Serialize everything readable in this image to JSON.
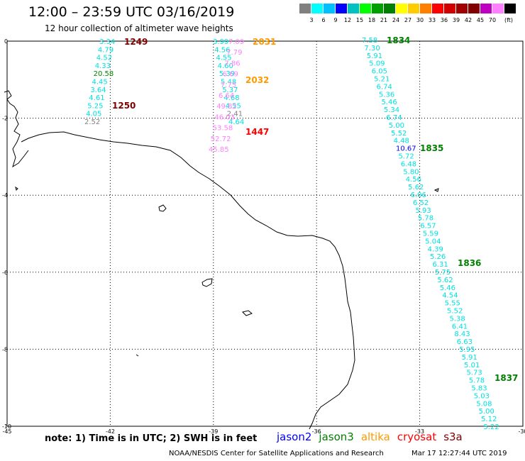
{
  "title": "12:00 – 23:59 UTC 03/16/2019",
  "subtitle": "12 hour collection of altimeter wave heights",
  "legend": {
    "colors": [
      "#808080",
      "#00ffff",
      "#00bfff",
      "#0000ff",
      "#00c0c0",
      "#00ff00",
      "#00a000",
      "#008000",
      "#ffff00",
      "#ffcc00",
      "#ff8000",
      "#ff0000",
      "#d00000",
      "#a00000",
      "#800000",
      "#c000c0",
      "#ff80ff",
      "#000000"
    ],
    "levels": [
      "3",
      "6",
      "9",
      "12",
      "15",
      "18",
      "21",
      "24",
      "27",
      "30",
      "33",
      "36",
      "39",
      "42",
      "45",
      "70"
    ],
    "unit": "(ft)"
  },
  "axes": {
    "x_ticks": [
      "-45",
      "-42",
      "-39",
      "-36",
      "-33",
      "-30"
    ],
    "y_ticks": [
      "0",
      "-2",
      "-4",
      "-6",
      "-8",
      "-10"
    ]
  },
  "tracks": [
    {
      "color": "#00e0e0",
      "values": [
        "3.34",
        "4.79",
        "4.52",
        "4.33",
        "20.58",
        "4.45",
        "3.64",
        "4.61",
        "5.25",
        "4.05",
        "2.52"
      ],
      "value_colors": [
        "#00e0e0",
        "#00e0e0",
        "#00e0e0",
        "#00e0e0",
        "#008000",
        "#00e0e0",
        "#00e0e0",
        "#00e0e0",
        "#00e0e0",
        "#00e0e0",
        "#808080"
      ],
      "times": [
        {
          "label": "1249",
          "color": "#800000"
        },
        {
          "label": "1250",
          "color": "#800000"
        }
      ]
    },
    {
      "color": "#00e0e0",
      "values": [
        "3.99",
        "4.56",
        "4.55",
        "4.60",
        "5.39",
        "5.48",
        "5.37",
        "4.68",
        "4.55",
        "2.41",
        "4.64"
      ],
      "value_colors": [
        "#00e0e0",
        "#00e0e0",
        "#00e0e0",
        "#00e0e0",
        "#00e0e0",
        "#00e0e0",
        "#00e0e0",
        "#00e0e0",
        "#00e0e0",
        "#808080",
        "#00e0e0"
      ],
      "times": [
        {
          "label": "1447",
          "color": "#ff0000"
        }
      ]
    },
    {
      "color": "#ff80ff",
      "values": [
        "7.09",
        "7.79",
        "7.86",
        "6.69",
        "7.75",
        "6.64",
        "49.82",
        "46.03",
        "53.58",
        "52.72",
        "45.85"
      ],
      "times": [
        {
          "label": "2031",
          "color": "#ff9900"
        },
        {
          "label": "2032",
          "color": "#ff9900"
        }
      ]
    },
    {
      "color": "#00e0e0",
      "values": [
        "7.58",
        "7.30",
        "5.91",
        "5.09",
        "6.05",
        "5.21",
        "6.74",
        "5.36",
        "5.46",
        "5.34",
        "6.74",
        "5.00",
        "5.52",
        "4.48",
        "10.67",
        "5.72",
        "6.48",
        "5.80",
        "4.56",
        "5.62",
        "6.06",
        "6.52",
        "5.93",
        "5.78",
        "6.57",
        "5.59",
        "5.04",
        "4.39",
        "5.26",
        "6.31",
        "5.75",
        "5.62",
        "5.46",
        "4.54",
        "5.55",
        "5.52",
        "5.38",
        "6.41",
        "8.43",
        "6.63",
        "5.95",
        "5.91",
        "5.01",
        "5.73",
        "5.78",
        "5.83",
        "5.03",
        "5.08",
        "5.00",
        "5.12",
        "5.22"
      ],
      "value_colors_special": {
        "14": "#0000ff"
      },
      "times": [
        {
          "label": "1834",
          "color": "#008000"
        },
        {
          "label": "1835",
          "color": "#008000"
        },
        {
          "label": "1836",
          "color": "#008000"
        },
        {
          "label": "1837",
          "color": "#008000"
        }
      ]
    }
  ],
  "note": "note:  1) Time is in UTC;  2) SWH is in feet",
  "satellites": [
    {
      "name": "jason2",
      "color": "#0000ff"
    },
    {
      "name": "jason3",
      "color": "#008000"
    },
    {
      "name": "altika",
      "color": "#ff9900"
    },
    {
      "name": "cryosat",
      "color": "#ff0000"
    },
    {
      "name": "s3a",
      "color": "#800000"
    }
  ],
  "credit": "NOAA/NESDIS Center for Satellite Applications and Research",
  "timestamp": "Mar 17 12:27:44 UTC 2019"
}
